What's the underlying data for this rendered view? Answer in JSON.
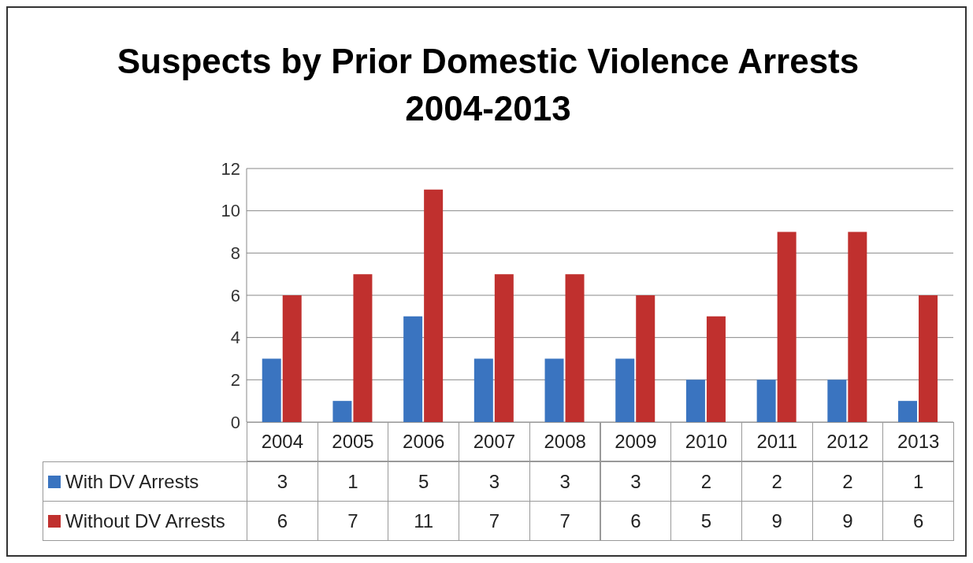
{
  "chart_data": {
    "type": "bar",
    "title": "Suspects by Prior Domestic Violence Arrests",
    "subtitle": "2004-2013",
    "categories": [
      "2004",
      "2005",
      "2006",
      "2007",
      "2008",
      "2009",
      "2010",
      "2011",
      "2012",
      "2013"
    ],
    "series": [
      {
        "name": "With DV Arrests",
        "color": "#3a74c0",
        "values": [
          3,
          1,
          5,
          3,
          3,
          3,
          2,
          2,
          2,
          1
        ]
      },
      {
        "name": "Without DV Arrests",
        "color": "#c0302e",
        "values": [
          6,
          7,
          11,
          7,
          7,
          6,
          5,
          9,
          9,
          6
        ]
      }
    ],
    "ylim": [
      0,
      12
    ],
    "yticks": [
      0,
      2,
      4,
      6,
      8,
      10,
      12
    ],
    "grid": "y",
    "legend": "bottom",
    "data_labels": true
  }
}
